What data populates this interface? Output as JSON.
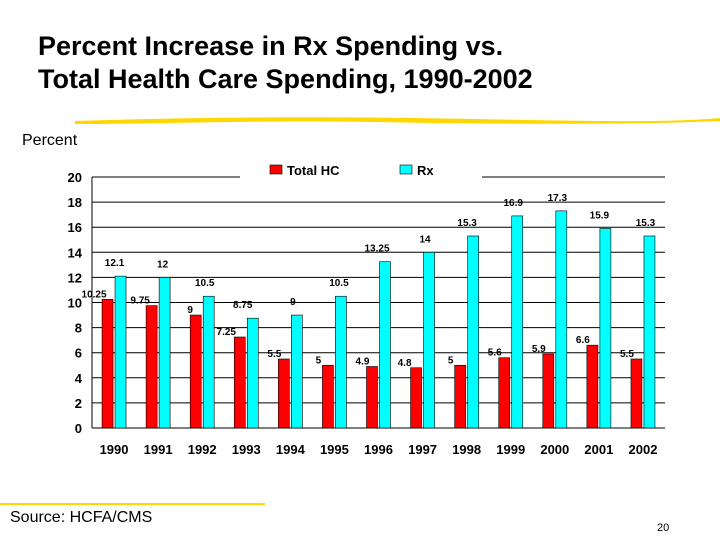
{
  "slide": {
    "title_line1": "Percent Increase in Rx Spending vs.",
    "title_line2": "Total Health Care Spending, 1990-2002",
    "source": "Source: HCFA/CMS",
    "page_number": "20"
  },
  "colors": {
    "total_hc": "#ff0000",
    "rx": "#00ffff",
    "title_underline": "#ffd700"
  },
  "chart_data": {
    "type": "bar",
    "ylabel": "Percent",
    "xlabel": "",
    "ylim": [
      0,
      20
    ],
    "yticks": [
      0,
      2,
      4,
      6,
      8,
      10,
      12,
      14,
      16,
      18,
      20
    ],
    "legend_position": "top-center",
    "categories": [
      "1990",
      "1991",
      "1992",
      "1993",
      "1994",
      "1995",
      "1996",
      "1997",
      "1998",
      "1999",
      "2000",
      "2001",
      "2002"
    ],
    "series": [
      {
        "name": "Total HC",
        "values": [
          10.25,
          9.75,
          9,
          7.25,
          5.5,
          5,
          4.9,
          4.8,
          5,
          5.6,
          5.9,
          6.6,
          5.5
        ],
        "labels": [
          "10.25",
          "9.75",
          "9",
          "7.25",
          "5.5",
          "5",
          "4.9",
          "4.8",
          "5",
          "5.6",
          "5.9",
          "6.6",
          "5.5"
        ]
      },
      {
        "name": "Rx",
        "values": [
          12.1,
          12,
          10.5,
          8.75,
          9,
          10.5,
          13.25,
          14,
          15.3,
          16.9,
          17.3,
          15.9,
          15.3
        ],
        "labels": [
          "12.1",
          "12",
          "10.5",
          "8.75",
          "9",
          "10.5",
          "13.25",
          "14",
          "15.3",
          "16.9",
          "17.3",
          "15.9",
          "15.3"
        ]
      }
    ]
  }
}
